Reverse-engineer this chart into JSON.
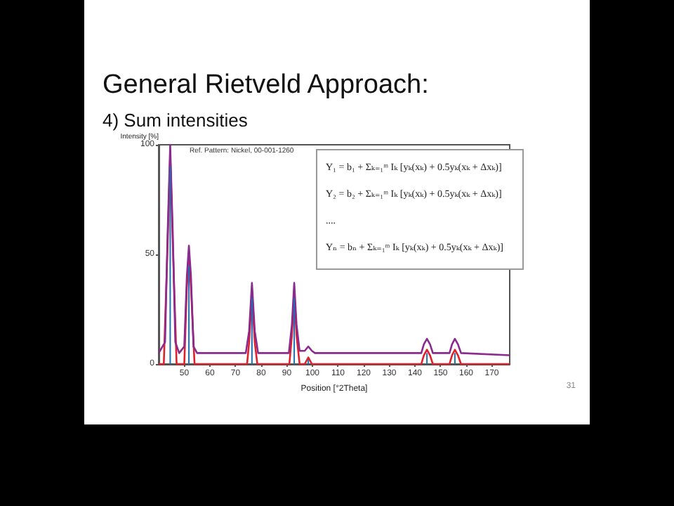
{
  "chart_data": {
    "type": "line",
    "title": "General Rietveld Approach:",
    "subtitle": "4) Sum intensities",
    "xlabel": "Position [°2Theta]",
    "ylabel": "Intensity [%]",
    "annotations": [
      "Ref. Pattern: Nickel, 00-001-1260",
      "Y₁ = b₁ + Σₖ₌₁ᵐ Iₖ [yₖ(xₖ) + 0.5yₖ(xₖ + Δxₖ)]",
      "Y₂ = b₂ + Σₖ₌₁ᵐ Iₖ [yₖ(xₖ) + 0.5yₖ(xₖ + Δxₖ)]",
      "....",
      "Yₙ = bₙ + Σₖ₌₁ᵐ Iₖ [yₖ(xₖ) + 0.5yₖ(xₖ + Δxₖ)]",
      "31"
    ],
    "xlim": [
      40,
      177
    ],
    "xticks": [
      50,
      60,
      70,
      80,
      90,
      100,
      110,
      120,
      130,
      140,
      150,
      160,
      170
    ],
    "ylim": [
      0,
      100
    ],
    "yticks": [
      0,
      50,
      100
    ],
    "grid": false,
    "marker": "none",
    "line_style": "solid",
    "series": [
      {
        "type": "bar",
        "color": "#1f6fb2",
        "x": [
          44.5,
          51.8,
          76.4,
          92.9,
          98.4,
          144.7,
          155.6
        ],
        "values": [
          90,
          45,
          30,
          30,
          2,
          5,
          5
        ]
      },
      {
        "color": "#e0202a",
        "x": [
          40,
          42,
          43.5,
          44.5,
          45.5,
          47,
          50,
          51,
          51.8,
          52.6,
          54,
          74.5,
          75.3,
          76.4,
          77.5,
          78.5,
          91,
          92,
          92.9,
          93.8,
          95,
          97,
          98.4,
          99.8,
          142.5,
          143.5,
          144.7,
          145.9,
          147,
          153.5,
          154.5,
          155.6,
          156.8,
          158,
          177
        ],
        "values": [
          0,
          0,
          55,
          95,
          55,
          0,
          0,
          35,
          49,
          35,
          0,
          0,
          10,
          32,
          10,
          0,
          0,
          13,
          32,
          13,
          0,
          0,
          3,
          0,
          0,
          4,
          6.5,
          4,
          0,
          0,
          4,
          6.5,
          4,
          0,
          0
        ]
      },
      {
        "color": "#8b2a8f",
        "x": [
          40,
          42.5,
          43.5,
          44.5,
          45.5,
          46.5,
          48,
          50,
          51,
          51.8,
          52.6,
          53.6,
          55,
          74,
          75.3,
          76.4,
          77.5,
          78.8,
          90.8,
          92,
          92.9,
          93.8,
          95,
          97,
          98.4,
          99.8,
          101,
          142.5,
          143.5,
          144.7,
          145.9,
          147,
          153.5,
          154.5,
          155.6,
          156.8,
          158,
          177
        ],
        "values": [
          5,
          10,
          60,
          100,
          60,
          10,
          5,
          8,
          40,
          54,
          40,
          8,
          5,
          5,
          15,
          37,
          15,
          5,
          5,
          18,
          37,
          18,
          6,
          6,
          8,
          6,
          5,
          5,
          9,
          11.5,
          9,
          5,
          5,
          9,
          11.5,
          9,
          5,
          4
        ]
      }
    ]
  }
}
